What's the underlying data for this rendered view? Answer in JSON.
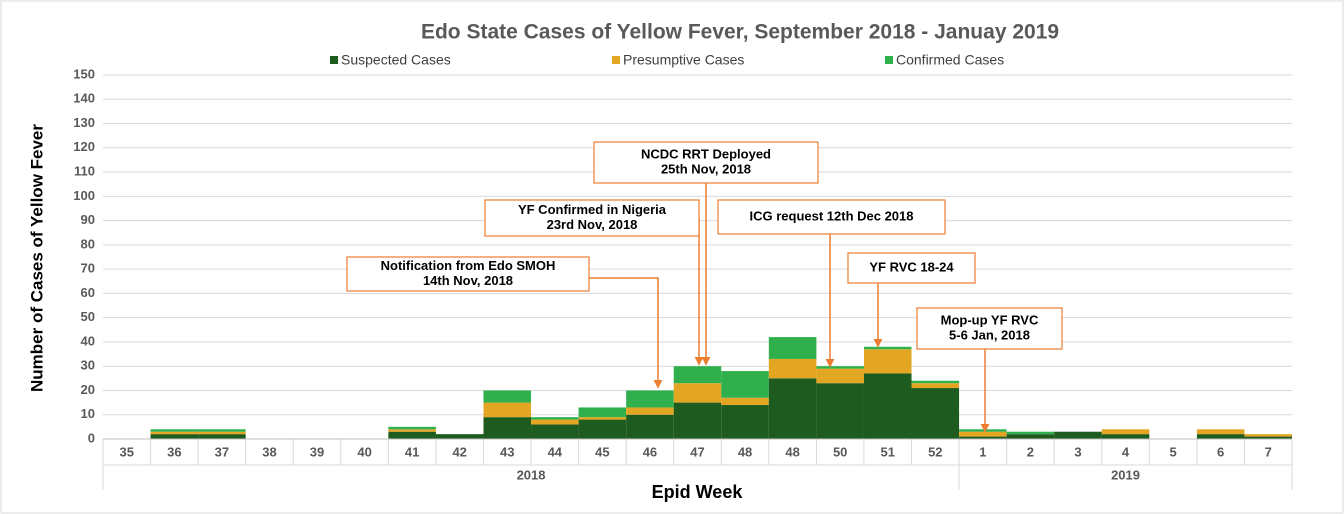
{
  "chart_data": {
    "type": "stacked_bar",
    "title": "Edo State Cases of Yellow Fever, September 2018 - Januay 2019",
    "x_label": "Epid Week",
    "y_label": "Number of Cases of Yellow Fever",
    "groups": [
      {
        "label": "2018",
        "categories": [
          "35",
          "36",
          "37",
          "38",
          "39",
          "40",
          "41",
          "42",
          "43",
          "44",
          "45",
          "46",
          "47",
          "48",
          "48",
          "50",
          "51",
          "52"
        ]
      },
      {
        "label": "2019",
        "categories": [
          "1",
          "2",
          "3",
          "4",
          "5",
          "6",
          "7"
        ]
      }
    ],
    "series": [
      {
        "name": "Suspected Cases",
        "color": "#1e5b1e",
        "values": [
          0,
          2,
          2,
          0,
          0,
          0,
          3,
          2,
          9,
          6,
          8,
          10,
          15,
          14,
          25,
          23,
          27,
          21,
          1,
          2,
          3,
          2,
          0,
          2,
          1
        ]
      },
      {
        "name": "Presumptive Cases",
        "color": "#e3a623",
        "values": [
          0,
          1,
          1,
          0,
          0,
          0,
          1,
          0,
          6,
          2,
          1,
          3,
          8,
          3,
          8,
          6,
          10,
          2,
          2,
          0,
          0,
          2,
          0,
          2,
          1
        ]
      },
      {
        "name": "Confirmed Cases",
        "color": "#2fb04c",
        "values": [
          0,
          1,
          1,
          0,
          0,
          0,
          1,
          0,
          5,
          1,
          4,
          7,
          7,
          11,
          9,
          1,
          1,
          1,
          1,
          1,
          0,
          0,
          0,
          0,
          0
        ]
      }
    ],
    "ylim": [
      0,
      150
    ],
    "yticks": [
      0,
      10,
      20,
      30,
      40,
      50,
      60,
      70,
      80,
      90,
      100,
      110,
      120,
      130,
      140,
      150
    ],
    "grid": true,
    "legend": "top",
    "annotations": [
      {
        "lines": [
          "Notification from Edo SMOH",
          "14th Nov, 2018"
        ]
      },
      {
        "lines": [
          "YF Confirmed in Nigeria",
          "23rd Nov, 2018"
        ]
      },
      {
        "lines": [
          "NCDC RRT Deployed",
          "25th Nov, 2018"
        ]
      },
      {
        "lines": [
          "ICG request 12th Dec 2018"
        ]
      },
      {
        "lines": [
          "YF RVC 18-24"
        ]
      },
      {
        "lines": [
          "Mop-up  YF RVC",
          "5-6 Jan, 2018"
        ]
      }
    ]
  }
}
